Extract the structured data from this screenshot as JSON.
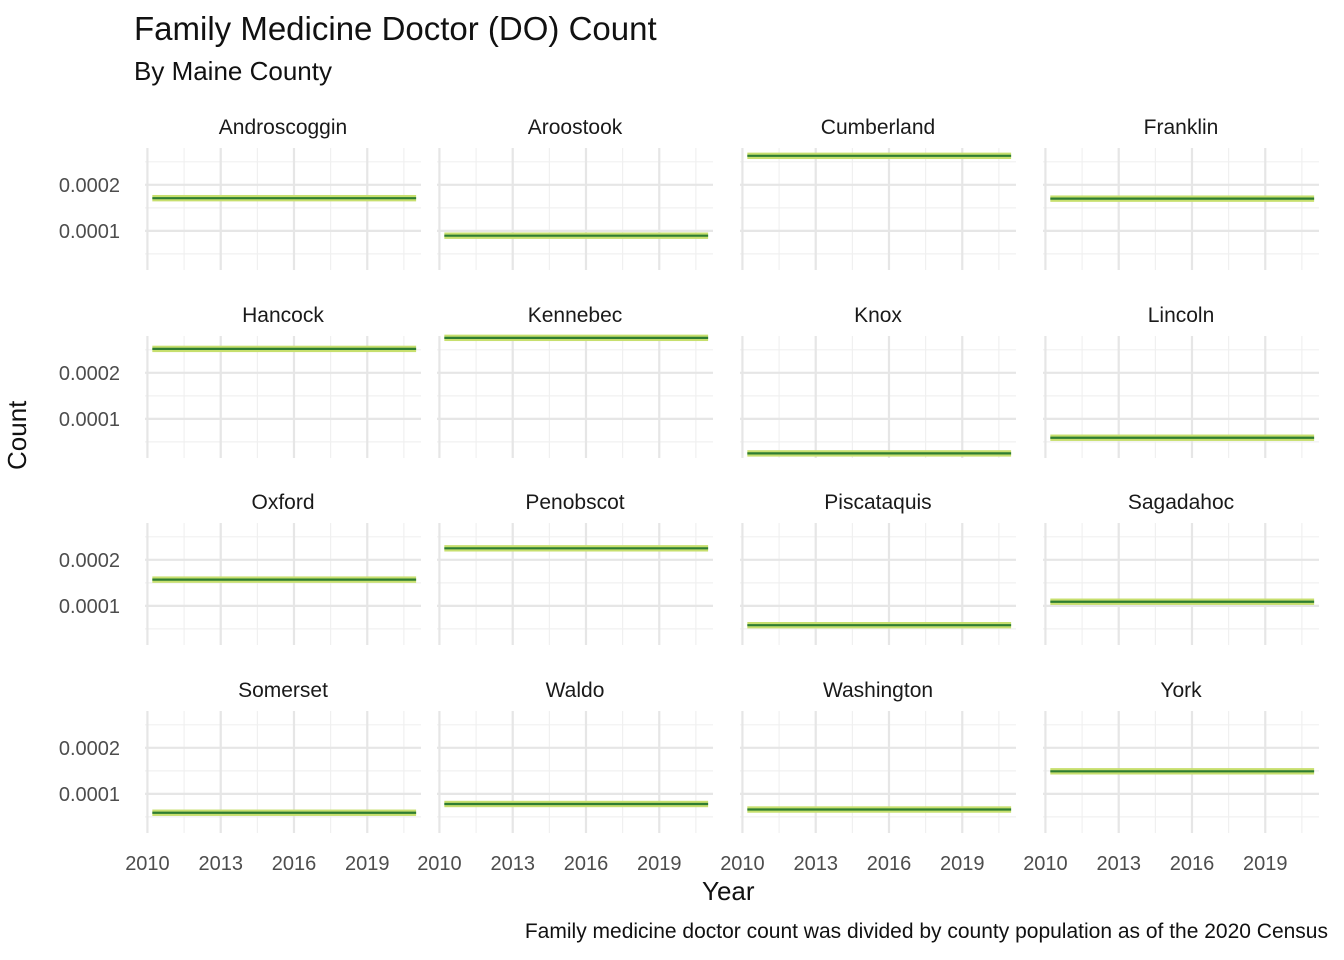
{
  "chart_data": {
    "type": "line",
    "title": "Family Medicine Doctor (DO) Count",
    "subtitle": "By Maine County",
    "xlabel": "Year",
    "ylabel": "Count",
    "caption": "Family medicine doctor count was divided by county population as of the 2020 Census",
    "x_ticks": [
      2010,
      2013,
      2016,
      2019
    ],
    "y_ticks": [
      0.0001,
      0.0002
    ],
    "y_tick_labels": [
      "0.0001",
      "0.0002"
    ],
    "xlim": [
      2009.9,
      2021.2
    ],
    "ylim": [
      1.5e-05,
      0.00028
    ],
    "x_range": [
      2010.2,
      2021
    ],
    "grid": true,
    "layout": "facet_wrap 4 columns",
    "line_color": "#2e7d32",
    "band_color": "#c7df6e",
    "panels": [
      {
        "name": "Androscoggin",
        "value": 0.000171
      },
      {
        "name": "Aroostook",
        "value": 8.95e-05
      },
      {
        "name": "Cumberland",
        "value": 0.000263
      },
      {
        "name": "Franklin",
        "value": 0.00017
      },
      {
        "name": "Hancock",
        "value": 0.000252
      },
      {
        "name": "Kennebec",
        "value": 0.000276
      },
      {
        "name": "Knox",
        "value": 2.5e-05
      },
      {
        "name": "Lincoln",
        "value": 5.9e-05
      },
      {
        "name": "Oxford",
        "value": 0.000157
      },
      {
        "name": "Penobscot",
        "value": 0.000225
      },
      {
        "name": "Piscataquis",
        "value": 5.8e-05
      },
      {
        "name": "Sagadahoc",
        "value": 0.000109
      },
      {
        "name": "Somerset",
        "value": 5.9e-05
      },
      {
        "name": "Waldo",
        "value": 7.8e-05
      },
      {
        "name": "Washington",
        "value": 6.6e-05
      },
      {
        "name": "York",
        "value": 0.000149
      }
    ]
  }
}
